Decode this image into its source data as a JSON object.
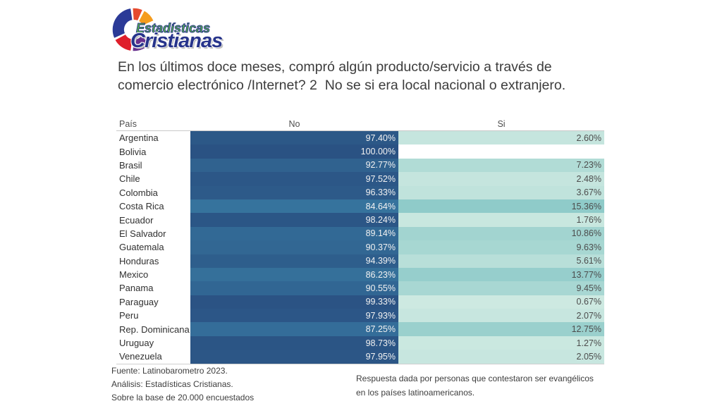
{
  "logo": {
    "line1": "Estadísticas",
    "line2": "Cristianas",
    "colors": {
      "blue": "#2b3a97",
      "coral": "#e64a2e",
      "orange": "#f59c1d",
      "purple": "#67318e",
      "red": "#df1f2b",
      "green": "#5cb845",
      "navy_text": "#27348b"
    }
  },
  "title": "En los últimos doce meses, compró algún producto/servicio a través de comercio electrónico /Internet? 2  No se si era local nacional o extranjero.",
  "chart_data": {
    "type": "heatmap",
    "title": "En los últimos doce meses, compró algún producto/servicio a través de comercio electrónico /Internet? 2  No se si era local nacional o extranjero.",
    "columns": [
      "País",
      "No",
      "Si"
    ],
    "value_format": "0.00%",
    "rows": [
      {
        "country": "Argentina",
        "no": 97.4,
        "si": 2.6
      },
      {
        "country": "Bolivia",
        "no": 100.0,
        "si": null
      },
      {
        "country": "Brasil",
        "no": 92.77,
        "si": 7.23
      },
      {
        "country": "Chile",
        "no": 97.52,
        "si": 2.48
      },
      {
        "country": "Colombia",
        "no": 96.33,
        "si": 3.67
      },
      {
        "country": "Costa Rica",
        "no": 84.64,
        "si": 15.36
      },
      {
        "country": "Ecuador",
        "no": 98.24,
        "si": 1.76
      },
      {
        "country": "El Salvador",
        "no": 89.14,
        "si": 10.86
      },
      {
        "country": "Guatemala",
        "no": 90.37,
        "si": 9.63
      },
      {
        "country": "Honduras",
        "no": 94.39,
        "si": 5.61
      },
      {
        "country": "Mexico",
        "no": 86.23,
        "si": 13.77
      },
      {
        "country": "Panama",
        "no": 90.55,
        "si": 9.45
      },
      {
        "country": "Paraguay",
        "no": 99.33,
        "si": 0.67
      },
      {
        "country": "Peru",
        "no": 97.93,
        "si": 2.07
      },
      {
        "country": "Rep. Dominicana",
        "no": 87.25,
        "si": 12.75
      },
      {
        "country": "Uruguay",
        "no": 98.73,
        "si": 1.27
      },
      {
        "country": "Venezuela",
        "no": 97.95,
        "si": 2.05
      }
    ],
    "color_scales": {
      "no": {
        "min": 84.64,
        "max": 100.0,
        "from": "#36739D",
        "to": "#2A5283"
      },
      "si": {
        "min": 0.67,
        "max": 15.36,
        "from": "#CDE9E1",
        "to": "#8FCBC9"
      }
    },
    "legend_position": "none",
    "grid": false
  },
  "footer": {
    "left_lines": [
      "Fuente: Latinobarometro 2023.",
      "Análisis: Estadísticas Cristianas.",
      "Sobre la base de 20.000 encuestados"
    ],
    "right": "Respuesta dada por personas que contestaron ser evangélicos en los países latinoamericanos."
  }
}
